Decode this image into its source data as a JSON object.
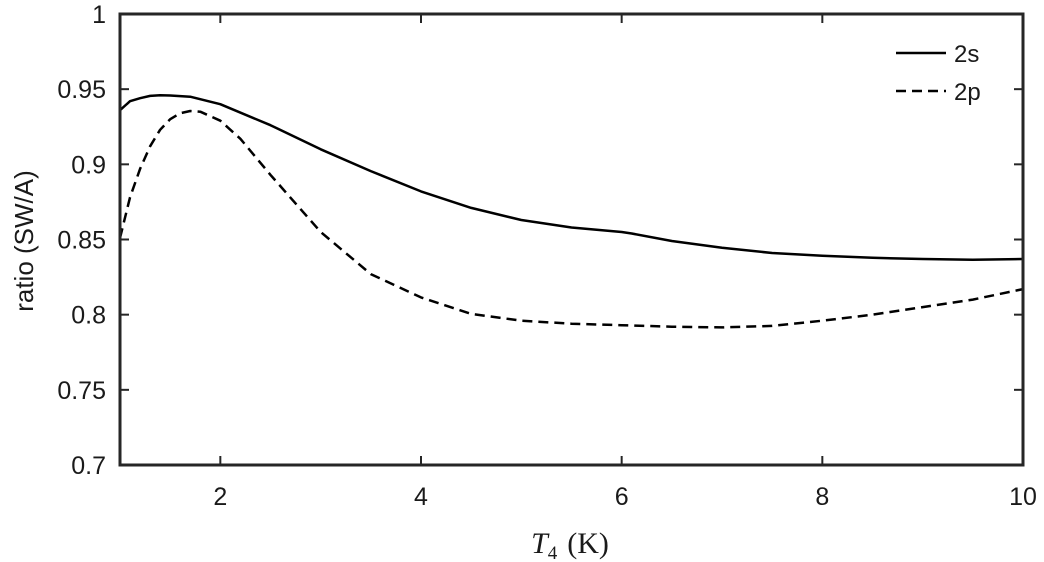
{
  "chart_data": {
    "type": "line",
    "title": "",
    "xlabel_var": "T",
    "xlabel_sub": "4",
    "xlabel_unit": "(K)",
    "ylabel": "ratio (SW/A)",
    "xlim": [
      1,
      10
    ],
    "ylim": [
      0.7,
      1
    ],
    "xticks": [
      2,
      4,
      6,
      8,
      10
    ],
    "xtick_labels": [
      "2",
      "4",
      "6",
      "8",
      "10"
    ],
    "yticks": [
      0.7,
      0.75,
      0.8,
      0.85,
      0.9,
      0.95,
      1
    ],
    "ytick_labels": [
      "0.7",
      "0.75",
      "0.8",
      "0.85",
      "0.9",
      "0.95",
      "1"
    ],
    "grid": false,
    "legend_position": "top-right",
    "series": [
      {
        "name": "2s",
        "style": "solid",
        "color": "#000000",
        "x": [
          1.0,
          1.1,
          1.2,
          1.3,
          1.4,
          1.5,
          1.7,
          2.0,
          2.5,
          3.0,
          3.5,
          4.0,
          4.5,
          5.0,
          5.5,
          6.0,
          6.1,
          6.5,
          7.0,
          7.5,
          8.0,
          8.5,
          9.0,
          9.5,
          10.0
        ],
        "y": [
          0.936,
          0.942,
          0.944,
          0.9455,
          0.946,
          0.9458,
          0.945,
          0.94,
          0.926,
          0.91,
          0.8955,
          0.882,
          0.871,
          0.863,
          0.858,
          0.855,
          0.854,
          0.849,
          0.8445,
          0.841,
          0.8392,
          0.8378,
          0.837,
          0.8365,
          0.837
        ]
      },
      {
        "name": "2p",
        "style": "dashed",
        "color": "#000000",
        "x": [
          1.0,
          1.1,
          1.2,
          1.3,
          1.4,
          1.5,
          1.6,
          1.7,
          1.8,
          2.0,
          2.2,
          2.5,
          3.0,
          3.5,
          4.0,
          4.5,
          5.0,
          5.5,
          6.0,
          6.5,
          7.0,
          7.5,
          8.0,
          8.5,
          9.0,
          9.5,
          10.0
        ],
        "y": [
          0.851,
          0.878,
          0.897,
          0.912,
          0.923,
          0.93,
          0.934,
          0.9355,
          0.935,
          0.929,
          0.917,
          0.893,
          0.855,
          0.827,
          0.8115,
          0.8005,
          0.796,
          0.794,
          0.793,
          0.792,
          0.7915,
          0.7925,
          0.796,
          0.8,
          0.805,
          0.81,
          0.817
        ]
      }
    ]
  }
}
